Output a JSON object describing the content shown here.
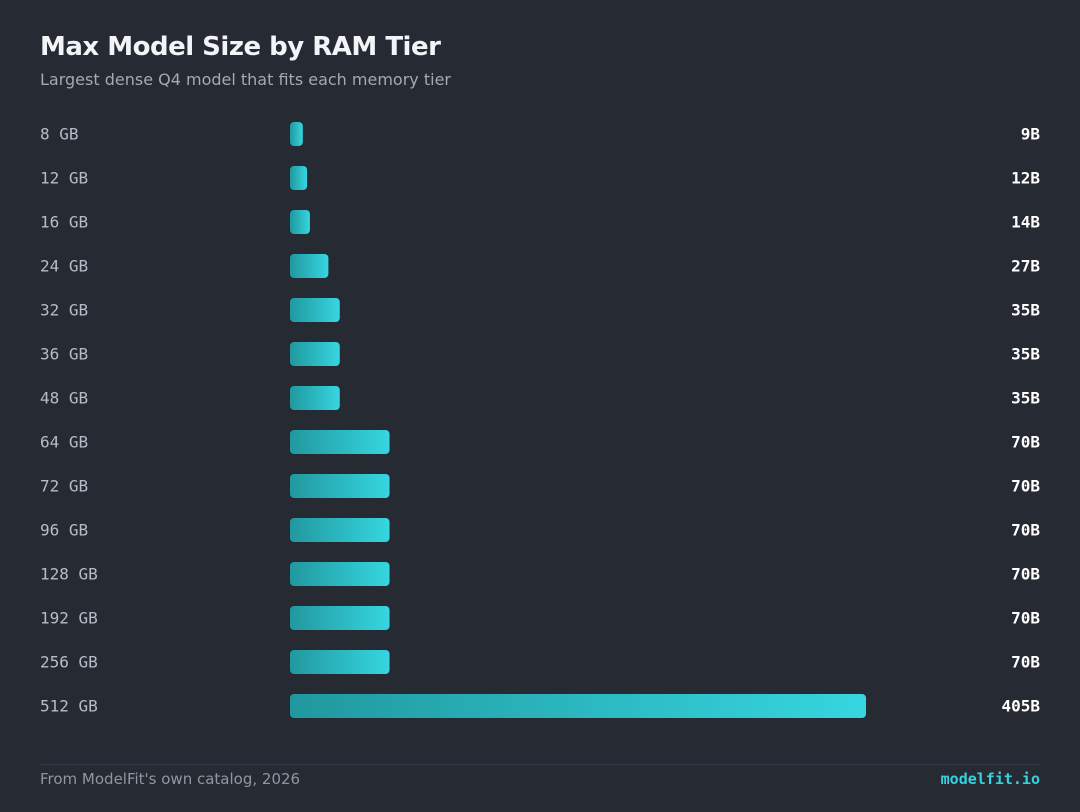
{
  "chart_data": {
    "type": "bar",
    "orientation": "horizontal",
    "title": "Max Model Size by RAM Tier",
    "subtitle": "Largest dense Q4 model that fits each memory tier",
    "categories": [
      "8 GB",
      "12 GB",
      "16 GB",
      "24 GB",
      "32 GB",
      "36 GB",
      "48 GB",
      "64 GB",
      "72 GB",
      "96 GB",
      "128 GB",
      "192 GB",
      "256 GB",
      "512 GB"
    ],
    "values": [
      9,
      12,
      14,
      27,
      35,
      35,
      35,
      70,
      70,
      70,
      70,
      70,
      70,
      405
    ],
    "value_labels": [
      "9B",
      "12B",
      "14B",
      "27B",
      "35B",
      "35B",
      "35B",
      "70B",
      "70B",
      "70B",
      "70B",
      "70B",
      "70B",
      "405B"
    ],
    "xlim": [
      0,
      405
    ],
    "grid": false,
    "legend": false,
    "bar_color_start": "#21989f",
    "bar_color_end": "#36d6e0"
  },
  "footer": {
    "source": "From ModelFit's own catalog, 2026",
    "brand": "modelfit.io"
  },
  "colors": {
    "background": "#262a33",
    "accent": "#34d3df"
  }
}
